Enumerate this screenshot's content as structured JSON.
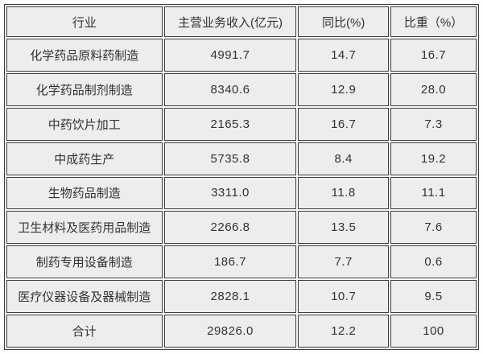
{
  "colors": {
    "cell_background": "#ededed",
    "gap_background": "#f8f8f8",
    "border": "#3d3d3d",
    "text": "#333333",
    "page_background": "#fdfdfd"
  },
  "chart_data": {
    "type": "table",
    "headers": [
      "行业",
      "主营业务收入(亿元)",
      "同比(%)",
      "比重（%）"
    ],
    "rows": [
      [
        "化学药品原料药制造",
        "4991.7",
        "14.7",
        "16.7"
      ],
      [
        "化学药品制剂制造",
        "8340.6",
        "12.9",
        "28.0"
      ],
      [
        "中药饮片加工",
        "2165.3",
        "16.7",
        "7.3"
      ],
      [
        "中成药生产",
        "5735.8",
        "8.4",
        "19.2"
      ],
      [
        "生物药品制造",
        "3311.0",
        "11.8",
        "11.1"
      ],
      [
        "卫生材料及医药用品制造",
        "2266.8",
        "13.5",
        "7.6"
      ],
      [
        "制药专用设备制造",
        "186.7",
        "7.7",
        "0.6"
      ],
      [
        "医疗仪器设备及器械制造",
        "2828.1",
        "10.7",
        "9.5"
      ],
      [
        "合计",
        "29826.0",
        "12.2",
        "100"
      ]
    ]
  }
}
